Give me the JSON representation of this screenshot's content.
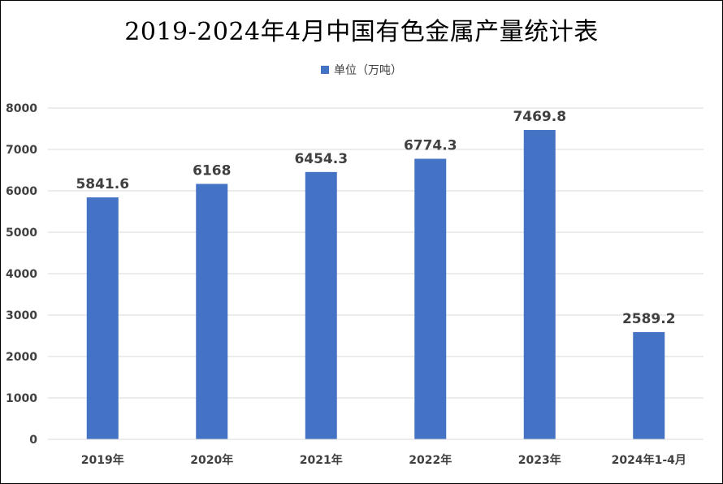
{
  "chart_data": {
    "type": "bar",
    "title": "2019-2024年4月中国有色金属产量统计表",
    "categories": [
      "2019年",
      "2020年",
      "2021年",
      "2022年",
      "2023年",
      "2024年1-4月"
    ],
    "series": [
      {
        "name": "单位（万吨）",
        "values": [
          5841.6,
          6168,
          6454.3,
          6774.3,
          7469.8,
          2589.2
        ],
        "data_labels": [
          "5841.6",
          "6168",
          "6454.3",
          "6774.3",
          "7469.8",
          "2589.2"
        ],
        "color": "#4472C4"
      }
    ],
    "ylim": [
      0,
      8000
    ],
    "yticks": [
      0,
      1000,
      2000,
      3000,
      4000,
      5000,
      6000,
      7000,
      8000
    ],
    "xlabel": "",
    "ylabel": "",
    "grid": true,
    "legend_position": "top"
  }
}
